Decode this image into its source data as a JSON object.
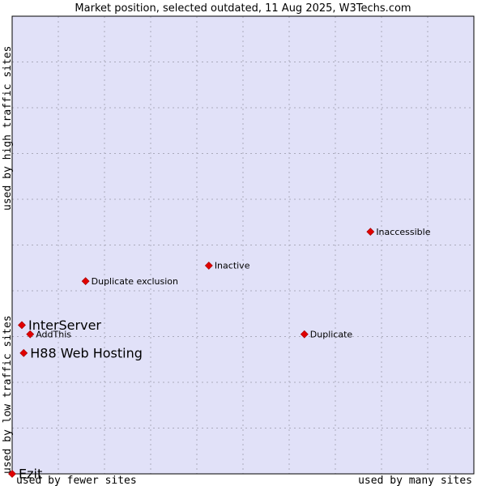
{
  "title": "Market position, selected outdated, 11 Aug 2025, W3Techs.com",
  "chart_data": {
    "type": "scatter",
    "title": "Market position, selected outdated, 11 Aug 2025, W3Techs.com",
    "x_axis": {
      "low_label": "used by fewer sites",
      "high_label": "used by many sites",
      "range": [
        0,
        100
      ]
    },
    "y_axis": {
      "low_label": "used by low traffic sites",
      "high_label": "used by high traffic sites",
      "range": [
        0,
        100
      ]
    },
    "grid": true,
    "points": [
      {
        "label": "InterServer",
        "x": 2.1,
        "y": 32.5,
        "emphasis": true
      },
      {
        "label": "AddThis",
        "x": 3.9,
        "y": 30.5,
        "emphasis": false
      },
      {
        "label": "H88 Web Hosting",
        "x": 2.5,
        "y": 26.4,
        "emphasis": true
      },
      {
        "label": "Duplicate exclusion",
        "x": 15.9,
        "y": 42.1,
        "emphasis": false
      },
      {
        "label": "Inactive",
        "x": 42.6,
        "y": 45.5,
        "emphasis": false
      },
      {
        "label": "Inaccessible",
        "x": 77.6,
        "y": 52.9,
        "emphasis": false
      },
      {
        "label": "Duplicate",
        "x": 63.3,
        "y": 30.5,
        "emphasis": false
      },
      {
        "label": "Ezit",
        "x": 0.0,
        "y": 0.0,
        "emphasis": true
      }
    ],
    "colors": {
      "plot_background": "#e1e1f8",
      "grid": "#aaaabb",
      "marker": "#e00000",
      "frame": "#000000"
    }
  }
}
